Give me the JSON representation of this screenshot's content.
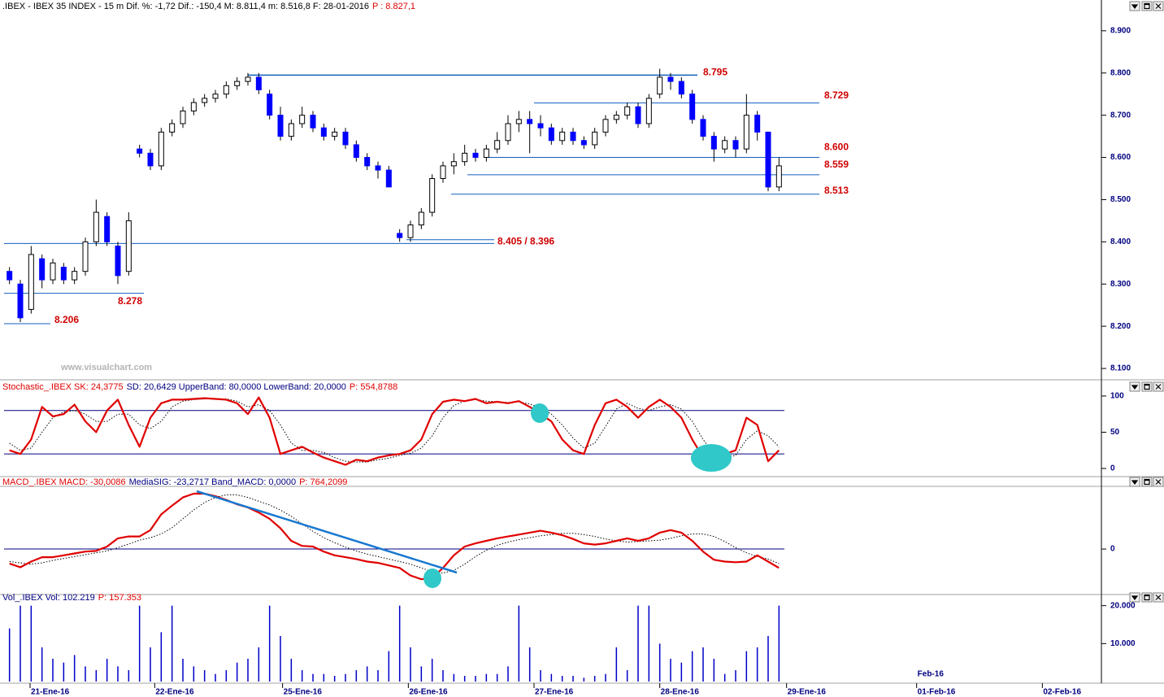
{
  "chart_data": [
    {
      "type": "candlestick",
      "header": [
        {
          "text": ".IBEX - IBEX 35 INDEX - 15 m Dif. %: -1,72 Dif.: -150,4 M: 8.811,4 m: 8.516,8 F: 28-01-2016",
          "color": "#000000"
        },
        {
          "text": "P : 8.827,1",
          "color": "#e00000"
        }
      ],
      "watermark": "www.visualchart.com",
      "open": [
        8.33,
        8.3,
        8.24,
        8.36,
        8.31,
        8.34,
        8.31,
        8.33,
        8.4,
        8.46,
        8.39,
        8.33,
        8.62,
        8.61,
        8.58,
        8.66,
        8.68,
        8.71,
        8.73,
        8.74,
        8.75,
        8.77,
        8.78,
        8.79,
        8.75,
        8.7,
        8.65,
        8.68,
        8.7,
        8.67,
        8.65,
        8.66,
        8.63,
        8.6,
        8.58,
        8.57,
        8.42,
        8.41,
        8.44,
        8.47,
        8.55,
        8.58,
        8.59,
        8.61,
        8.6,
        8.62,
        8.64,
        8.68,
        8.69,
        8.68,
        8.67,
        8.64,
        8.66,
        8.64,
        8.63,
        8.66,
        8.69,
        8.7,
        8.72,
        8.68,
        8.75,
        8.79,
        8.78,
        8.75,
        8.69,
        8.65,
        8.62,
        8.64,
        8.62,
        8.7,
        8.66,
        8.53
      ],
      "high": [
        8.34,
        8.31,
        8.39,
        8.37,
        8.36,
        8.35,
        8.34,
        8.41,
        8.5,
        8.47,
        8.4,
        8.47,
        8.63,
        8.62,
        8.67,
        8.69,
        8.72,
        8.74,
        8.75,
        8.76,
        8.78,
        8.79,
        8.8,
        8.8,
        8.76,
        8.72,
        8.69,
        8.72,
        8.71,
        8.68,
        8.67,
        8.67,
        8.64,
        8.61,
        8.59,
        8.58,
        8.43,
        8.45,
        8.48,
        8.56,
        8.59,
        8.61,
        8.63,
        8.62,
        8.63,
        8.66,
        8.7,
        8.71,
        8.71,
        8.7,
        8.68,
        8.67,
        8.67,
        8.65,
        8.67,
        8.7,
        8.71,
        8.73,
        8.73,
        8.75,
        8.81,
        8.8,
        8.79,
        8.76,
        8.7,
        8.66,
        8.65,
        8.65,
        8.75,
        8.71,
        8.66,
        8.6
      ],
      "low": [
        8.3,
        8.21,
        8.23,
        8.29,
        8.3,
        8.3,
        8.3,
        8.32,
        8.39,
        8.39,
        8.3,
        8.32,
        8.6,
        8.57,
        8.57,
        8.65,
        8.67,
        8.7,
        8.72,
        8.73,
        8.74,
        8.76,
        8.77,
        8.75,
        8.69,
        8.64,
        8.64,
        8.67,
        8.66,
        8.64,
        8.64,
        8.62,
        8.59,
        8.57,
        8.55,
        8.53,
        8.4,
        8.4,
        8.43,
        8.46,
        8.54,
        8.56,
        8.58,
        8.59,
        8.59,
        8.61,
        8.63,
        8.66,
        8.61,
        8.65,
        8.63,
        8.63,
        8.63,
        8.62,
        8.62,
        8.65,
        8.68,
        8.69,
        8.67,
        8.67,
        8.74,
        8.76,
        8.74,
        8.68,
        8.64,
        8.59,
        8.61,
        8.6,
        8.61,
        8.64,
        8.52,
        8.52
      ],
      "close": [
        8.31,
        8.22,
        8.37,
        8.31,
        8.35,
        8.31,
        8.33,
        8.4,
        8.47,
        8.4,
        8.32,
        8.45,
        8.61,
        8.58,
        8.66,
        8.68,
        8.71,
        8.73,
        8.74,
        8.75,
        8.77,
        8.78,
        8.79,
        8.76,
        8.7,
        8.65,
        8.68,
        8.7,
        8.67,
        8.65,
        8.66,
        8.63,
        8.6,
        8.58,
        8.57,
        8.53,
        8.41,
        8.44,
        8.47,
        8.55,
        8.58,
        8.59,
        8.61,
        8.6,
        8.62,
        8.64,
        8.68,
        8.69,
        8.68,
        8.67,
        8.64,
        8.66,
        8.64,
        8.63,
        8.66,
        8.69,
        8.7,
        8.72,
        8.68,
        8.74,
        8.79,
        8.78,
        8.75,
        8.69,
        8.65,
        8.62,
        8.64,
        8.62,
        8.7,
        8.66,
        8.53,
        8.58
      ],
      "color_down": "#0000ff",
      "color_up": "#ffffff",
      "ylim": [
        8.077,
        8.944
      ],
      "yticks": [
        {
          "value": 8.1,
          "label": "8.100"
        },
        {
          "value": 8.2,
          "label": "8.200"
        },
        {
          "value": 8.3,
          "label": "8.300"
        },
        {
          "value": 8.4,
          "label": "8.400"
        },
        {
          "value": 8.5,
          "label": "8.500"
        },
        {
          "value": 8.6,
          "label": "8.600"
        },
        {
          "value": 8.7,
          "label": "8.700"
        },
        {
          "value": 8.8,
          "label": "8.800"
        },
        {
          "value": 8.9,
          "label": "8.900"
        }
      ],
      "level_color": "#1060c0",
      "level_label_color": "#d00000",
      "levels": [
        {
          "value": 8.795,
          "label": "8.795"
        },
        {
          "value": 8.729,
          "label": "8.729"
        },
        {
          "value": 8.6,
          "label": "8.600"
        },
        {
          "value": 8.559,
          "label": "8.559"
        },
        {
          "value": 8.513,
          "label": "8.513"
        },
        {
          "values": [
            8.405,
            8.396
          ],
          "label": "8.405 / 8.396"
        },
        {
          "value": 8.278,
          "label": "8.278"
        },
        {
          "value": 8.206,
          "label": "8.206"
        }
      ]
    },
    {
      "type": "line",
      "header": [
        {
          "text": "Stochastic_.IBEX SK: 24,3775",
          "color": "#e00000"
        },
        {
          "text": "SD: 20,6429 UpperBand: 80,0000 LowerBand: 20,0000",
          "color": "#000080"
        },
        {
          "text": "P: 554,8788",
          "color": "#e00000"
        }
      ],
      "series": [
        {
          "color": "#e00000",
          "values": [
            25,
            20,
            40,
            85,
            72,
            75,
            88,
            65,
            50,
            80,
            95,
            60,
            30,
            70,
            90,
            95,
            95,
            96,
            97,
            96,
            95,
            90,
            75,
            98,
            70,
            20,
            25,
            30,
            22,
            15,
            10,
            5,
            12,
            10,
            15,
            18,
            20,
            25,
            40,
            75,
            92,
            95,
            93,
            96,
            90,
            92,
            90,
            93,
            85,
            75,
            65,
            40,
            25,
            20,
            60,
            90,
            95,
            85,
            70,
            85,
            95,
            85,
            70,
            40,
            15,
            8,
            20,
            25,
            70,
            60,
            10,
            25
          ]
        },
        {
          "color": "#000000",
          "style": "dotted",
          "values": [
            35,
            25,
            28,
            50,
            70,
            78,
            80,
            75,
            65,
            65,
            75,
            75,
            60,
            55,
            65,
            85,
            93,
            95,
            96,
            96,
            96,
            93,
            85,
            88,
            80,
            60,
            35,
            25,
            25,
            22,
            15,
            10,
            9,
            9,
            12,
            14,
            18,
            21,
            28,
            45,
            70,
            87,
            93,
            95,
            93,
            92,
            91,
            92,
            89,
            84,
            75,
            60,
            42,
            28,
            35,
            58,
            82,
            90,
            83,
            80,
            85,
            88,
            82,
            65,
            40,
            20,
            15,
            18,
            40,
            52,
            45,
            30
          ]
        }
      ],
      "bands": [
        80,
        20
      ],
      "band_color": "#000080",
      "ylim": [
        -13.5,
        119
      ],
      "yticks": [
        0,
        50,
        100
      ]
    },
    {
      "type": "line",
      "header": [
        {
          "text": "MACD_.IBEX MACD: -30,0086",
          "color": "#e00000"
        },
        {
          "text": "MediaSIG: -23,2717 Band_MACD: 0,0000",
          "color": "#000080"
        },
        {
          "text": "P: 764,2099",
          "color": "#e00000"
        }
      ],
      "series": [
        {
          "color": "#e00000",
          "values": [
            -23,
            -29,
            -20,
            -13,
            -13,
            -10,
            -7,
            -4,
            -3,
            4,
            17,
            20,
            20,
            30,
            55,
            69,
            82,
            88,
            88,
            84,
            78,
            71,
            66,
            58,
            48,
            33,
            13,
            5,
            4,
            -4,
            -10,
            -13,
            -16,
            -20,
            -22,
            -26,
            -30,
            -42,
            -48,
            -46,
            -30,
            -10,
            4,
            9,
            13,
            17,
            20,
            23,
            26,
            29,
            26,
            22,
            16,
            9,
            7,
            9,
            13,
            17,
            13,
            17,
            26,
            30,
            26,
            13,
            -4,
            -17,
            -20,
            -21,
            -20,
            -10,
            -20,
            -30
          ]
        },
        {
          "color": "#000000",
          "style": "dotted",
          "values": [
            -20,
            -22,
            -24,
            -22,
            -18,
            -15,
            -12,
            -9,
            -6,
            -3,
            2,
            8,
            14,
            18,
            24,
            34,
            48,
            62,
            74,
            82,
            86,
            86,
            82,
            76,
            70,
            62,
            52,
            40,
            28,
            18,
            10,
            3,
            -3,
            -8,
            -12,
            -16,
            -20,
            -24,
            -30,
            -36,
            -38,
            -34,
            -24,
            -12,
            -2,
            6,
            11,
            15,
            18,
            21,
            23,
            25,
            25,
            23,
            20,
            16,
            13,
            11,
            12,
            13,
            14,
            17,
            21,
            24,
            24,
            20,
            12,
            2,
            -6,
            -12,
            -16,
            -23
          ]
        }
      ],
      "bands": [
        0
      ],
      "band_color": "#000080",
      "ylim": [
        -71,
        97
      ],
      "yticks": [
        0
      ]
    },
    {
      "type": "bar",
      "header": [
        {
          "text": "Vol_.IBEX Vol: 102.219",
          "color": "#000080"
        },
        {
          "text": "P: 157.353",
          "color": "#e00000"
        }
      ],
      "color": "#0000c8",
      "values": [
        14000,
        20000,
        20000,
        9000,
        6000,
        5000,
        7000,
        4000,
        3000,
        6000,
        4000,
        3000,
        20000,
        9000,
        13000,
        20000,
        6000,
        4000,
        3000,
        2000,
        3000,
        5000,
        6000,
        9000,
        20000,
        12000,
        6000,
        3000,
        2000,
        2000,
        1500,
        2000,
        3000,
        4000,
        3000,
        8000,
        20000,
        9000,
        4000,
        6000,
        3000,
        2000,
        1500,
        1500,
        2000,
        2000,
        4000,
        20000,
        9000,
        3000,
        2000,
        1500,
        1500,
        1000,
        1500,
        2000,
        9000,
        3000,
        20000,
        20000,
        10000,
        6000,
        5000,
        8000,
        9000,
        6000,
        2000,
        3000,
        8000,
        9000,
        12000,
        20000
      ],
      "ylim": [
        0,
        21000
      ],
      "yticks": [
        {
          "value": 10000,
          "label": "10.000"
        },
        {
          "value": 20000,
          "label": "20.000"
        }
      ],
      "xlim": [
        0,
        101.25
      ],
      "xticks": [
        {
          "value": 2.4,
          "label": "21-Ene-16"
        },
        {
          "value": 13.9,
          "label": "22-Ene-16"
        },
        {
          "value": 25.7,
          "label": "25-Ene-16"
        },
        {
          "value": 37.3,
          "label": "26-Ene-16"
        },
        {
          "value": 48.9,
          "label": "27-Ene-16"
        },
        {
          "value": 60.5,
          "label": "28-Ene-16"
        },
        {
          "value": 72.2,
          "label": "29-Ene-16"
        },
        {
          "value": 84.2,
          "label": "01-Feb-16"
        },
        {
          "value": 95.8,
          "label": "02-Feb-16"
        }
      ],
      "annotation": "Feb-16"
    }
  ]
}
